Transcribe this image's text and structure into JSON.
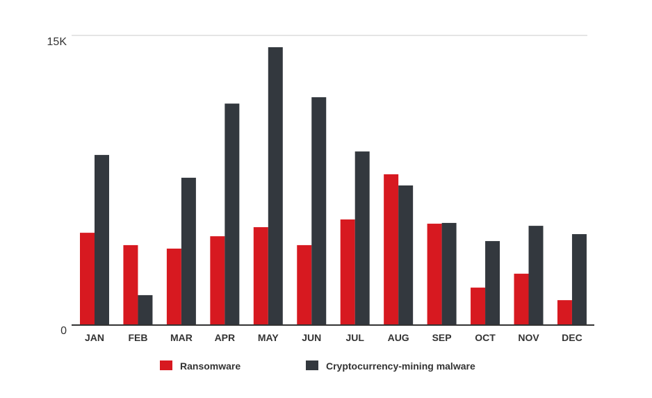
{
  "chart_data": {
    "type": "bar",
    "title": "",
    "xlabel": "",
    "ylabel": "",
    "ylim": [
      0,
      15000
    ],
    "ytick_labels": [
      "0",
      "15K"
    ],
    "yticks": [
      0,
      15000
    ],
    "grid": true,
    "legend_position": "bottom",
    "categories": [
      "JAN",
      "FEB",
      "MAR",
      "APR",
      "MAY",
      "JUN",
      "JUL",
      "AUG",
      "SEP",
      "OCT",
      "NOV",
      "DEC"
    ],
    "series": [
      {
        "name": "Ransomware",
        "color": "#d71920",
        "values": [
          4780,
          4140,
          3960,
          4600,
          5070,
          4140,
          5470,
          7810,
          5250,
          1940,
          2660,
          1290
        ]
      },
      {
        "name": "Cryptocurrency-mining malware",
        "color": "#33383e",
        "values": [
          8810,
          1550,
          7630,
          11470,
          14390,
          11800,
          8990,
          7230,
          5290,
          4350,
          5140,
          4710
        ]
      }
    ]
  }
}
